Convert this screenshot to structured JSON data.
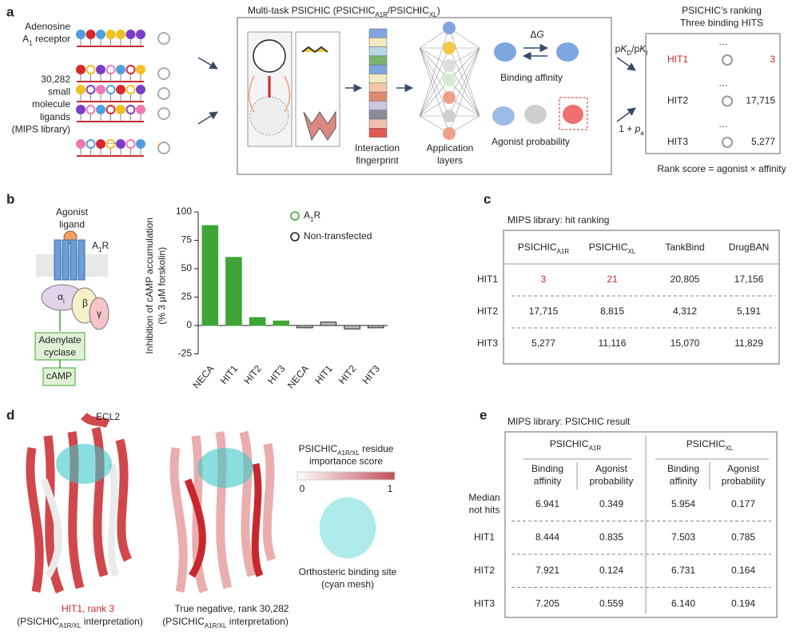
{
  "panel_labels": [
    "a",
    "b",
    "c",
    "d",
    "e"
  ],
  "panel_a": {
    "receptor_label": [
      "Adenosine",
      [
        {
          "t": "A"
        },
        {
          "t": "1",
          "sub": true
        },
        {
          "t": " receptor"
        }
      ]
    ],
    "library_label": [
      "30,282",
      "small",
      "molecule",
      "ligands",
      "(MIPS library)"
    ],
    "ellipsis": "…",
    "model_title": [
      {
        "t": "Multi-task PSICHIC (PSICHIC"
      },
      {
        "t": "A1R",
        "sub": true
      },
      {
        "t": "/PSICHIC"
      },
      {
        "t": "XL",
        "sub": true
      },
      {
        "t": ")"
      }
    ],
    "fingerprint_label": [
      "Interaction",
      "fingerprint"
    ],
    "layers_label": [
      "Application",
      "layers"
    ],
    "delta_g": [
      {
        "t": "Δ"
      },
      {
        "t": "G",
        "i": true
      }
    ],
    "binding_affinity": "Binding affinity",
    "agonist_probability": "Agonist probability",
    "affinity_input": [
      {
        "t": "p"
      },
      {
        "t": "K",
        "i": true
      },
      {
        "t": "D",
        "sub": true
      },
      {
        "t": "/p"
      },
      {
        "t": "K",
        "i": true
      },
      {
        "t": "I",
        "sub": true
      }
    ],
    "agonist_input": [
      {
        "t": "1 + "
      },
      {
        "t": "p",
        "i": true
      },
      {
        "t": "a",
        "sub": true
      }
    ],
    "ranking_title": [
      "PSICHIC’s ranking",
      "Three binding HITS"
    ],
    "ranking": [
      {
        "hit": "HIT1",
        "rank": "3"
      },
      {
        "hit": "HIT2",
        "rank": "17,715"
      },
      {
        "hit": "HIT3",
        "rank": "5,277"
      }
    ],
    "rank_score": "Rank score = agonist × affinity"
  },
  "panel_b_diagram": {
    "ligand": [
      "Agonist",
      "ligand"
    ],
    "receptor": [
      {
        "t": "A"
      },
      {
        "t": "1",
        "sub": true
      },
      {
        "t": "R"
      }
    ],
    "alpha": [
      {
        "t": "α"
      },
      {
        "t": "i",
        "sub": true
      }
    ],
    "beta": "β",
    "gamma": "γ",
    "cyclase": [
      "Adenylate",
      "cyclase"
    ],
    "camp": "cAMP"
  },
  "chart_data": {
    "type": "bar",
    "y_label": [
      "Inhibition of cAMP accumulation",
      "(% 3 μM forskolin)"
    ],
    "categories": [
      "NECA",
      "HIT1",
      "HIT2",
      "HIT3",
      "NECA",
      "HIT1",
      "HIT2",
      "HIT3"
    ],
    "series": [
      {
        "name": [
          {
            "t": "A"
          },
          {
            "t": "1",
            "sub": true
          },
          {
            "t": "R"
          }
        ],
        "color": "#3fa535",
        "values": [
          88,
          60,
          7,
          4,
          null,
          null,
          null,
          null
        ]
      },
      {
        "name": "Non-transfected",
        "color": "#222222",
        "values": [
          null,
          null,
          null,
          null,
          -2,
          3,
          -3,
          -2
        ]
      }
    ],
    "ylim": [
      -30,
      100
    ],
    "yticks": [
      -25,
      0,
      25,
      50,
      75,
      100
    ]
  },
  "panel_c": {
    "title": "MIPS library: hit ranking",
    "headers": [
      [
        {
          "t": "PSICHIC"
        },
        {
          "t": "A1R",
          "sub": true
        }
      ],
      [
        {
          "t": "PSICHIC"
        },
        {
          "t": "XL",
          "sub": true
        }
      ],
      "TankBind",
      "DrugBAN"
    ],
    "rows": [
      {
        "label": "HIT1",
        "cells": [
          "3",
          "21",
          "20,805",
          "17,156"
        ]
      },
      {
        "label": "HIT2",
        "cells": [
          "17,715",
          "8,815",
          "4,312",
          "5,191"
        ]
      },
      {
        "label": "HIT3",
        "cells": [
          "5,277",
          "11,116",
          "15,070",
          "11,829"
        ]
      }
    ]
  },
  "panel_d": {
    "ecl2": "ECL2",
    "hit1_caption": "HIT1, rank 3",
    "negative_caption": "True negative, rank 30,282",
    "interpretation": [
      {
        "t": "(PSICHIC"
      },
      {
        "t": "A1R/XL",
        "sub": true
      },
      {
        "t": " interpretation)"
      }
    ],
    "scale_title": [
      [
        {
          "t": "PSICHIC"
        },
        {
          "t": "A1R/XL",
          "sub": true
        },
        {
          "t": " residue"
        }
      ],
      "importance score"
    ],
    "scale_min": "0",
    "scale_max": "1",
    "site_label": [
      "Orthosteric binding site",
      "(cyan mesh)"
    ]
  },
  "panel_e": {
    "title": "MIPS library: PSICHIC result",
    "groups": [
      [
        {
          "t": "PSICHIC"
        },
        {
          "t": "A1R",
          "sub": true
        }
      ],
      [
        {
          "t": "PSICHIC"
        },
        {
          "t": "XL",
          "sub": true
        }
      ]
    ],
    "subheaders": [
      [
        "Binding",
        "affinity"
      ],
      [
        "Agonist",
        "probability"
      ],
      [
        "Binding",
        "affinity"
      ],
      [
        "Agonist",
        "probability"
      ]
    ],
    "rows": [
      {
        "label": [
          "Median",
          "not hits"
        ],
        "cells": [
          "6.941",
          "0.349",
          "5.954",
          "0.177"
        ]
      },
      {
        "label": "HIT1",
        "cells": [
          "8.444",
          "0.835",
          "7.503",
          "0.785"
        ]
      },
      {
        "label": "HIT2",
        "cells": [
          "7.921",
          "0.124",
          "6.731",
          "0.164"
        ]
      },
      {
        "label": "HIT3",
        "cells": [
          "7.205",
          "0.559",
          "6.140",
          "0.194"
        ]
      }
    ]
  }
}
